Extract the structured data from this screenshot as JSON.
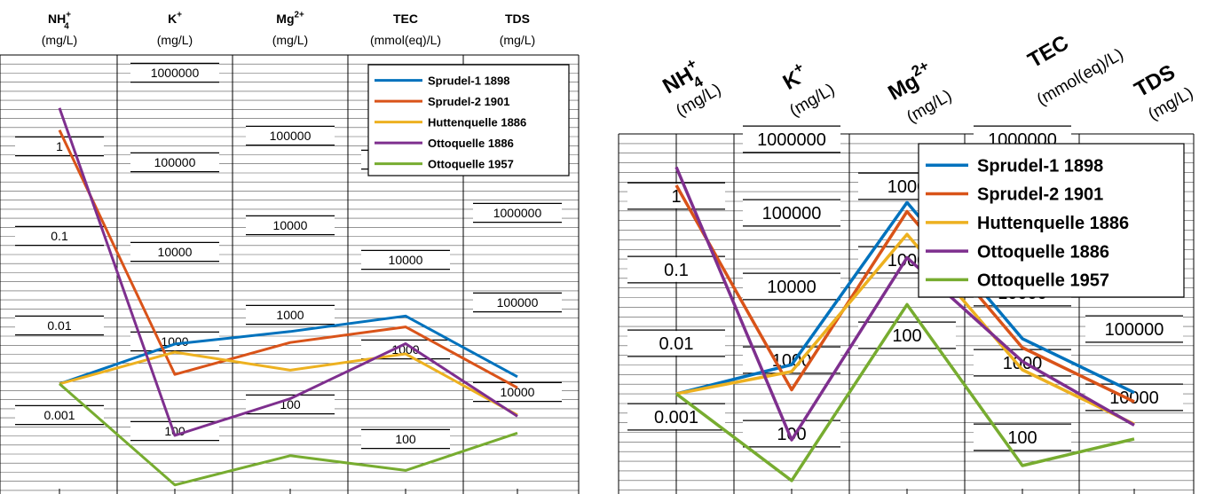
{
  "chart_data": [
    {
      "type": "line",
      "variant": "schoeller-diagram",
      "title": "",
      "scale": "log",
      "grid": true,
      "legend_position": "top-right",
      "headers": [
        {
          "base": "NH",
          "sub": "4",
          "sup": "+",
          "unit": "(mg/L)"
        },
        {
          "base": "K",
          "sub": "",
          "sup": "+",
          "unit": "(mg/L)"
        },
        {
          "base": "Mg",
          "sub": "",
          "sup": "2+",
          "unit": "(mg/L)"
        },
        {
          "base": "TEC",
          "sub": "",
          "sup": "",
          "unit": "(mmol(eq)/L)"
        },
        {
          "base": "TDS",
          "sub": "",
          "sup": "",
          "unit": "(mg/L)"
        }
      ],
      "tick_labels": [
        [
          "1",
          "0.1",
          "0.01",
          "0.001"
        ],
        [
          "1000000",
          "100000",
          "10000",
          "1000",
          "100"
        ],
        [
          "100000",
          "10000",
          "1000",
          "100"
        ],
        [
          "100000",
          "10000",
          "1000",
          "100"
        ],
        [
          "1000000",
          "100000",
          "10000"
        ]
      ],
      "series": [
        {
          "name": "Sprudel-1 1898",
          "color": "#0072BD",
          "values": [
            0.0025,
            1050,
            730,
            2650,
            16600
          ]
        },
        {
          "name": "Sprudel-2 1901",
          "color": "#D95319",
          "values": [
            1.7,
            480,
            550,
            2000,
            12500
          ]
        },
        {
          "name": "Huttenquelle 1886",
          "color": "#EDB120",
          "values": [
            0.0025,
            850,
            270,
            1000,
            6200
          ]
        },
        {
          "name": "Ottoquelle 1886",
          "color": "#7E2F8E",
          "values": [
            3.0,
            100,
            130,
            1300,
            6000
          ]
        },
        {
          "name": "Ottoquelle 1957",
          "color": "#77AC30",
          "values": [
            0.0025,
            28,
            30,
            50,
            3900
          ]
        }
      ]
    },
    {
      "type": "line",
      "variant": "schoeller-diagram",
      "title": "",
      "scale": "log",
      "grid": true,
      "legend_position": "top-right",
      "headers": [
        {
          "base": "NH",
          "sub": "4",
          "sup": "+",
          "unit": "(mg/L)"
        },
        {
          "base": "K",
          "sub": "",
          "sup": "+",
          "unit": "(mg/L)"
        },
        {
          "base": "Mg",
          "sub": "",
          "sup": "2+",
          "unit": "(mg/L)"
        },
        {
          "base": "TEC",
          "sub": "",
          "sup": "",
          "unit": "(mmol(eq)/L)"
        },
        {
          "base": "TDS",
          "sub": "",
          "sup": "",
          "unit": "(mg/L)"
        }
      ],
      "tick_labels": [
        [
          "1",
          "0.1",
          "0.01",
          "0.001"
        ],
        [
          "1000000",
          "100000",
          "10000",
          "1000",
          "100"
        ],
        [
          "1000",
          "1000",
          "100"
        ],
        [
          "1000000",
          "10000",
          "1000",
          "100"
        ],
        [
          "100000",
          "10000"
        ]
      ],
      "series": [
        {
          "name": "Sprudel-1 1898",
          "color": "#0072BD",
          "values": [
            0.0025,
            1050,
            730,
            2650,
            16600
          ]
        },
        {
          "name": "Sprudel-2 1901",
          "color": "#D95319",
          "values": [
            1.7,
            480,
            550,
            2000,
            12500
          ]
        },
        {
          "name": "Huttenquelle 1886",
          "color": "#EDB120",
          "values": [
            0.0025,
            850,
            270,
            1000,
            6200
          ]
        },
        {
          "name": "Ottoquelle 1886",
          "color": "#7E2F8E",
          "values": [
            3.0,
            100,
            130,
            1300,
            6000
          ]
        },
        {
          "name": "Ottoquelle 1957",
          "color": "#77AC30",
          "values": [
            0.0025,
            28,
            30,
            50,
            3900
          ]
        }
      ]
    }
  ]
}
